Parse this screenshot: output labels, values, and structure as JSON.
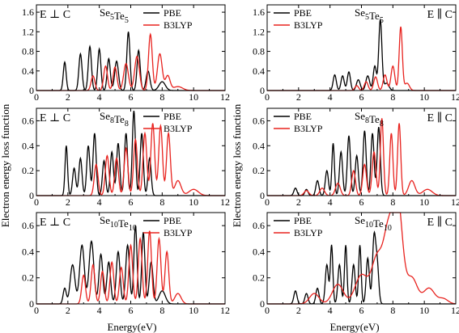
{
  "figure": {
    "ylabel_left": "Electron energy loss function",
    "ylabel_right": "Electron energy loss function",
    "xlabel_left": "Energy(eV)",
    "xlabel_right": "Energy(eV)"
  },
  "colors": {
    "PBE": "#000000",
    "B3LYP": "#e8231f"
  },
  "chart_data": [
    {
      "type": "line",
      "position": "top-left",
      "title_base": [
        "Se",
        "Te"
      ],
      "title_sub": [
        "5",
        "5"
      ],
      "field_label": "E ⊥ C",
      "xlim": [
        0,
        12
      ],
      "ylim": [
        0,
        1.75
      ],
      "xticks": [
        0,
        2,
        4,
        6,
        8,
        10,
        12
      ],
      "yticks": [
        0,
        0.4,
        0.8,
        1.2,
        1.6
      ],
      "ytick_labels": [
        "0",
        "0.4",
        "0.8",
        "1.2",
        "1.6"
      ],
      "legend": [
        "PBE",
        "B3LYP"
      ],
      "series": [
        {
          "name": "PBE",
          "peaks": [
            [
              1.8,
              0.58,
              0.09
            ],
            [
              2.8,
              0.75,
              0.1
            ],
            [
              3.4,
              0.9,
              0.1
            ],
            [
              4.0,
              0.85,
              0.1
            ],
            [
              4.6,
              0.65,
              0.1
            ],
            [
              5.1,
              0.6,
              0.12
            ],
            [
              5.85,
              1.2,
              0.1
            ],
            [
              6.5,
              0.82,
              0.1
            ],
            [
              7.1,
              0.4,
              0.12
            ],
            [
              8.0,
              0.18,
              0.2
            ]
          ]
        },
        {
          "name": "B3LYP",
          "peaks": [
            [
              3.6,
              0.3,
              0.12
            ],
            [
              4.4,
              0.5,
              0.12
            ],
            [
              5.0,
              0.48,
              0.12
            ],
            [
              5.7,
              0.55,
              0.15
            ],
            [
              6.4,
              0.7,
              0.15
            ],
            [
              7.25,
              1.15,
              0.12
            ],
            [
              7.85,
              0.75,
              0.15
            ],
            [
              8.35,
              0.3,
              0.15
            ],
            [
              9.0,
              0.08,
              0.3
            ]
          ]
        }
      ]
    },
    {
      "type": "line",
      "position": "top-right",
      "title_base": [
        "Se",
        "Te"
      ],
      "title_sub": [
        "5",
        "5"
      ],
      "field_label": "E ∥ C",
      "xlim": [
        0,
        12
      ],
      "ylim": [
        0,
        1.75
      ],
      "xticks": [
        0,
        2,
        4,
        6,
        8,
        10,
        12
      ],
      "yticks": [
        0,
        0.4,
        0.8,
        1.2,
        1.6
      ],
      "ytick_labels": [
        "0",
        "0.4",
        "0.8",
        "1.2",
        "1.6"
      ],
      "legend": [
        "PBE",
        "B3LYP"
      ],
      "series": [
        {
          "name": "PBE",
          "peaks": [
            [
              4.3,
              0.32,
              0.1
            ],
            [
              4.8,
              0.3,
              0.1
            ],
            [
              5.2,
              0.38,
              0.1
            ],
            [
              5.8,
              0.22,
              0.12
            ],
            [
              6.4,
              0.3,
              0.12
            ],
            [
              6.85,
              0.5,
              0.1
            ],
            [
              7.2,
              1.45,
              0.1
            ],
            [
              7.6,
              0.15,
              0.15
            ]
          ]
        },
        {
          "name": "B3LYP",
          "peaks": [
            [
              5.7,
              0.1,
              0.12
            ],
            [
              6.3,
              0.18,
              0.12
            ],
            [
              6.9,
              0.28,
              0.12
            ],
            [
              7.5,
              0.32,
              0.12
            ],
            [
              8.0,
              0.5,
              0.12
            ],
            [
              8.5,
              1.3,
              0.1
            ],
            [
              8.9,
              0.15,
              0.15
            ]
          ]
        }
      ]
    },
    {
      "type": "line",
      "position": "middle-left",
      "title_base": [
        "Se",
        "Te"
      ],
      "title_sub": [
        "8",
        "8"
      ],
      "field_label": "E ⊥ C",
      "xlim": [
        0,
        12
      ],
      "ylim": [
        0,
        0.7
      ],
      "xticks": [
        0,
        2,
        4,
        6,
        8,
        10,
        12
      ],
      "yticks": [
        0,
        0.2,
        0.4,
        0.6
      ],
      "ytick_labels": [
        "0",
        "0.2",
        "0.4",
        "0.6"
      ],
      "legend": [
        "PBE",
        "B3LYP"
      ],
      "series": [
        {
          "name": "PBE",
          "peaks": [
            [
              1.9,
              0.4,
              0.08
            ],
            [
              2.4,
              0.22,
              0.1
            ],
            [
              2.8,
              0.3,
              0.1
            ],
            [
              3.3,
              0.4,
              0.1
            ],
            [
              3.7,
              0.5,
              0.1
            ],
            [
              4.3,
              0.28,
              0.1
            ],
            [
              4.8,
              0.35,
              0.1
            ],
            [
              5.2,
              0.42,
              0.1
            ],
            [
              5.7,
              0.5,
              0.1
            ],
            [
              6.2,
              0.68,
              0.1
            ],
            [
              6.7,
              0.5,
              0.1
            ],
            [
              7.2,
              0.3,
              0.1
            ]
          ]
        },
        {
          "name": "B3LYP",
          "peaks": [
            [
              3.8,
              0.25,
              0.12
            ],
            [
              4.5,
              0.32,
              0.12
            ],
            [
              5.1,
              0.3,
              0.12
            ],
            [
              5.7,
              0.38,
              0.12
            ],
            [
              6.3,
              0.45,
              0.12
            ],
            [
              6.9,
              0.5,
              0.12
            ],
            [
              7.4,
              0.58,
              0.12
            ],
            [
              7.9,
              0.56,
              0.12
            ],
            [
              8.4,
              0.5,
              0.12
            ],
            [
              9.0,
              0.12,
              0.2
            ],
            [
              10.0,
              0.05,
              0.3
            ]
          ]
        }
      ]
    },
    {
      "type": "line",
      "position": "middle-right",
      "title_base": [
        "Se",
        "Te"
      ],
      "title_sub": [
        "8",
        "8"
      ],
      "field_label": "E ∥ C",
      "xlim": [
        0,
        12
      ],
      "ylim": [
        0,
        0.7
      ],
      "xticks": [
        0,
        2,
        4,
        6,
        8,
        10,
        12
      ],
      "yticks": [
        0,
        0.2,
        0.4,
        0.6
      ],
      "ytick_labels": [
        "0",
        "0.2",
        "0.4",
        "0.6"
      ],
      "legend": [
        "PBE",
        "B3LYP"
      ],
      "series": [
        {
          "name": "PBE",
          "peaks": [
            [
              1.8,
              0.06,
              0.1
            ],
            [
              2.5,
              0.05,
              0.1
            ],
            [
              3.2,
              0.12,
              0.1
            ],
            [
              3.8,
              0.2,
              0.1
            ],
            [
              4.2,
              0.42,
              0.08
            ],
            [
              4.7,
              0.35,
              0.1
            ],
            [
              5.2,
              0.48,
              0.1
            ],
            [
              5.7,
              0.32,
              0.1
            ],
            [
              6.2,
              0.52,
              0.1
            ],
            [
              6.7,
              0.5,
              0.1
            ],
            [
              7.1,
              0.55,
              0.1
            ]
          ]
        },
        {
          "name": "B3LYP",
          "peaks": [
            [
              2.5,
              0.04,
              0.15
            ],
            [
              3.5,
              0.06,
              0.15
            ],
            [
              4.5,
              0.1,
              0.15
            ],
            [
              5.5,
              0.2,
              0.12
            ],
            [
              6.2,
              0.25,
              0.12
            ],
            [
              6.8,
              0.35,
              0.12
            ],
            [
              7.3,
              0.62,
              0.1
            ],
            [
              7.9,
              0.5,
              0.1
            ],
            [
              8.4,
              0.58,
              0.1
            ],
            [
              9.2,
              0.12,
              0.2
            ],
            [
              10.2,
              0.05,
              0.3
            ]
          ]
        }
      ]
    },
    {
      "type": "line",
      "position": "bottom-left",
      "title_base": [
        "Se",
        "Te"
      ],
      "title_sub": [
        "10",
        "10"
      ],
      "field_label": "E ⊥ C",
      "xlim": [
        0,
        12
      ],
      "ylim": [
        0,
        0.7
      ],
      "xticks": [
        0,
        2,
        4,
        6,
        8,
        10,
        12
      ],
      "yticks": [
        0,
        0.2,
        0.4,
        0.6
      ],
      "ytick_labels": [
        "0",
        "0.2",
        "0.4",
        "0.6"
      ],
      "legend": [
        "PBE",
        "B3LYP"
      ],
      "series": [
        {
          "name": "PBE",
          "peaks": [
            [
              1.8,
              0.12,
              0.1
            ],
            [
              2.3,
              0.3,
              0.15
            ],
            [
              2.9,
              0.45,
              0.15
            ],
            [
              3.5,
              0.48,
              0.15
            ],
            [
              4.1,
              0.38,
              0.12
            ],
            [
              4.6,
              0.32,
              0.12
            ],
            [
              5.2,
              0.4,
              0.12
            ],
            [
              5.8,
              0.45,
              0.12
            ],
            [
              6.3,
              0.6,
              0.1
            ],
            [
              6.8,
              0.55,
              0.1
            ],
            [
              7.3,
              0.32,
              0.12
            ],
            [
              8.0,
              0.1,
              0.2
            ]
          ]
        },
        {
          "name": "B3LYP",
          "peaks": [
            [
              3.0,
              0.22,
              0.12
            ],
            [
              3.6,
              0.3,
              0.12
            ],
            [
              4.2,
              0.25,
              0.12
            ],
            [
              4.8,
              0.32,
              0.12
            ],
            [
              5.4,
              0.28,
              0.12
            ],
            [
              6.0,
              0.45,
              0.12
            ],
            [
              6.6,
              0.5,
              0.12
            ],
            [
              7.2,
              0.56,
              0.12
            ],
            [
              7.8,
              0.5,
              0.12
            ],
            [
              8.3,
              0.4,
              0.12
            ],
            [
              9.0,
              0.08,
              0.2
            ]
          ]
        }
      ]
    },
    {
      "type": "line",
      "position": "bottom-right",
      "title_base": [
        "Se",
        "Te"
      ],
      "title_sub": [
        "10",
        "10"
      ],
      "field_label": "E ∥ C",
      "xlim": [
        0,
        12
      ],
      "ylim": [
        0,
        0.7
      ],
      "xticks": [
        0,
        2,
        4,
        6,
        8,
        10,
        12
      ],
      "yticks": [
        0,
        0.2,
        0.4,
        0.6
      ],
      "ytick_labels": [
        "0",
        "0.2",
        "0.4",
        "0.6"
      ],
      "legend": [
        "PBE",
        "B3LYP"
      ],
      "series": [
        {
          "name": "PBE",
          "peaks": [
            [
              1.8,
              0.1,
              0.1
            ],
            [
              2.5,
              0.08,
              0.1
            ],
            [
              3.2,
              0.12,
              0.1
            ],
            [
              3.8,
              0.3,
              0.1
            ],
            [
              4.1,
              0.45,
              0.08
            ],
            [
              4.6,
              0.3,
              0.1
            ],
            [
              5.0,
              0.45,
              0.08
            ],
            [
              5.5,
              0.3,
              0.1
            ],
            [
              5.9,
              0.45,
              0.08
            ],
            [
              6.4,
              0.35,
              0.1
            ],
            [
              6.8,
              0.5,
              0.1
            ],
            [
              7.0,
              0.3,
              0.1
            ]
          ]
        },
        {
          "name": "B3LYP",
          "peaks": [
            [
              3.0,
              0.08,
              0.3
            ],
            [
              4.5,
              0.15,
              0.35
            ],
            [
              6.0,
              0.22,
              0.4
            ],
            [
              7.0,
              0.35,
              0.35
            ],
            [
              7.7,
              0.5,
              0.3
            ],
            [
              8.3,
              0.78,
              0.3
            ],
            [
              9.2,
              0.2,
              0.35
            ],
            [
              10.3,
              0.12,
              0.35
            ],
            [
              11.2,
              0.04,
              0.3
            ]
          ]
        }
      ]
    }
  ]
}
